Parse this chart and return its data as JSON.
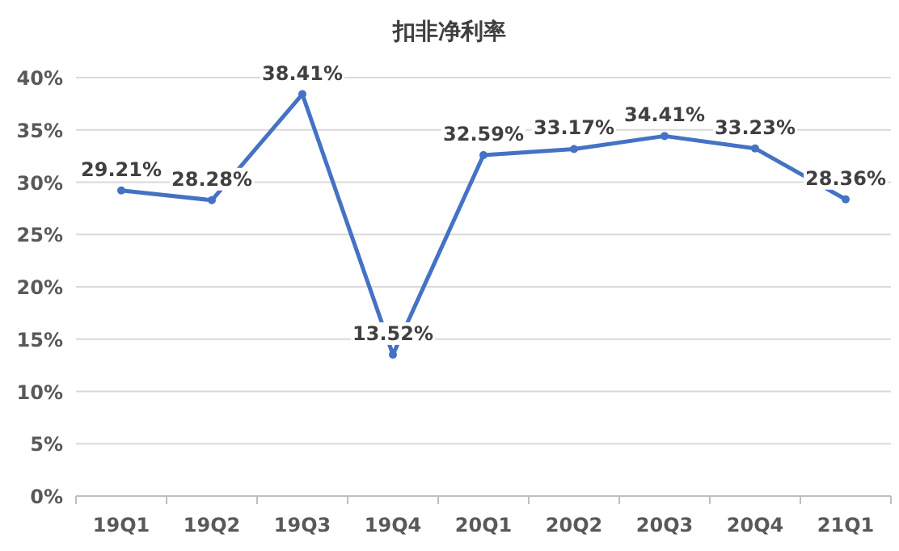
{
  "chart_data": {
    "type": "line",
    "title": "扣非净利率",
    "categories": [
      "19Q1",
      "19Q2",
      "19Q3",
      "19Q4",
      "20Q1",
      "20Q2",
      "20Q3",
      "20Q4",
      "21Q1"
    ],
    "series": [
      {
        "color": "#4472c4",
        "values": [
          29.21,
          28.28,
          38.41,
          13.52,
          32.59,
          33.17,
          34.41,
          33.23,
          28.36
        ],
        "value_labels": [
          "29.21%",
          "28.28%",
          "38.41%",
          "13.52%",
          "32.59%",
          "33.17%",
          "34.41%",
          "33.23%",
          "28.36%"
        ]
      }
    ],
    "ylim": [
      0,
      40
    ],
    "yticks": [
      {
        "value": 0,
        "label": "0%"
      },
      {
        "value": 5,
        "label": "5%"
      },
      {
        "value": 10,
        "label": "10%"
      },
      {
        "value": 15,
        "label": "15%"
      },
      {
        "value": 20,
        "label": "20%"
      },
      {
        "value": 25,
        "label": "25%"
      },
      {
        "value": 30,
        "label": "30%"
      },
      {
        "value": 35,
        "label": "35%"
      },
      {
        "value": 40,
        "label": "40%"
      }
    ],
    "grid": "y",
    "marker": "circle",
    "line_style": "solid"
  }
}
